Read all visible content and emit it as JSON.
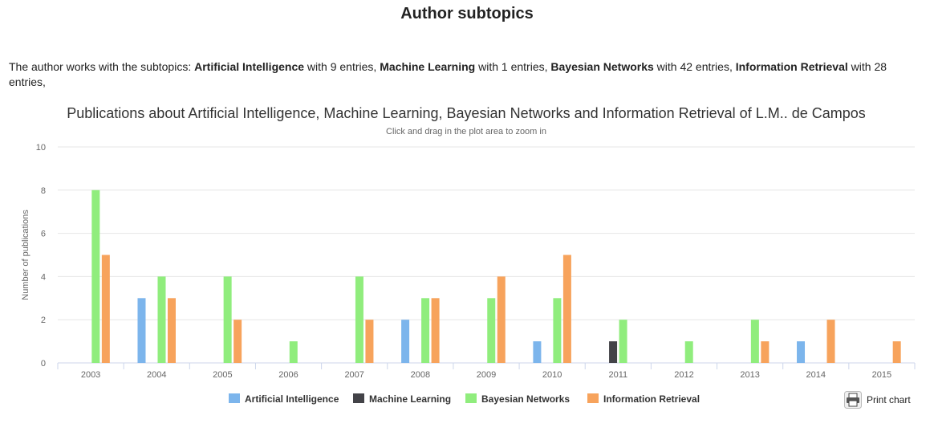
{
  "page": {
    "title": "Author subtopics",
    "summary_prefix": "The author works with the subtopics: ",
    "subtopics": [
      {
        "name": "Artificial Intelligence",
        "text": " with 9 entries, "
      },
      {
        "name": "Machine Learning",
        "text": " with 1 entries, "
      },
      {
        "name": "Bayesian Networks",
        "text": " with 42 entries, "
      },
      {
        "name": "Information Retrieval",
        "text": " with 28 entries,"
      }
    ]
  },
  "print_button": {
    "label": "Print chart",
    "icon": "printer-icon"
  },
  "chart_data": {
    "type": "bar",
    "title": "Publications about Artificial Intelligence, Machine Learning, Bayesian Networks and Information Retrieval of L.M.. de Campos",
    "subtitle": "Click and drag in the plot area to zoom in",
    "xlabel": "",
    "ylabel": "Number of publications",
    "ylim": [
      0,
      10
    ],
    "yticks": [
      0,
      2,
      4,
      6,
      8,
      10
    ],
    "grid": true,
    "legend_position": "bottom-center",
    "categories": [
      "2003",
      "2004",
      "2005",
      "2006",
      "2007",
      "2008",
      "2009",
      "2010",
      "2011",
      "2012",
      "2013",
      "2014",
      "2015"
    ],
    "series": [
      {
        "name": "Artificial Intelligence",
        "color": "#7cb5ec",
        "values": [
          0,
          3,
          0,
          0,
          0,
          2,
          0,
          1,
          0,
          0,
          0,
          1,
          0
        ]
      },
      {
        "name": "Machine Learning",
        "color": "#434348",
        "values": [
          0,
          0,
          0,
          0,
          0,
          0,
          0,
          0,
          1,
          0,
          0,
          0,
          0
        ]
      },
      {
        "name": "Bayesian Networks",
        "color": "#90ed7d",
        "values": [
          8,
          4,
          4,
          1,
          4,
          3,
          3,
          3,
          2,
          1,
          2,
          0,
          0
        ]
      },
      {
        "name": "Information Retrieval",
        "color": "#f7a35c",
        "values": [
          5,
          3,
          2,
          0,
          2,
          3,
          4,
          5,
          0,
          0,
          1,
          2,
          1
        ]
      }
    ]
  }
}
